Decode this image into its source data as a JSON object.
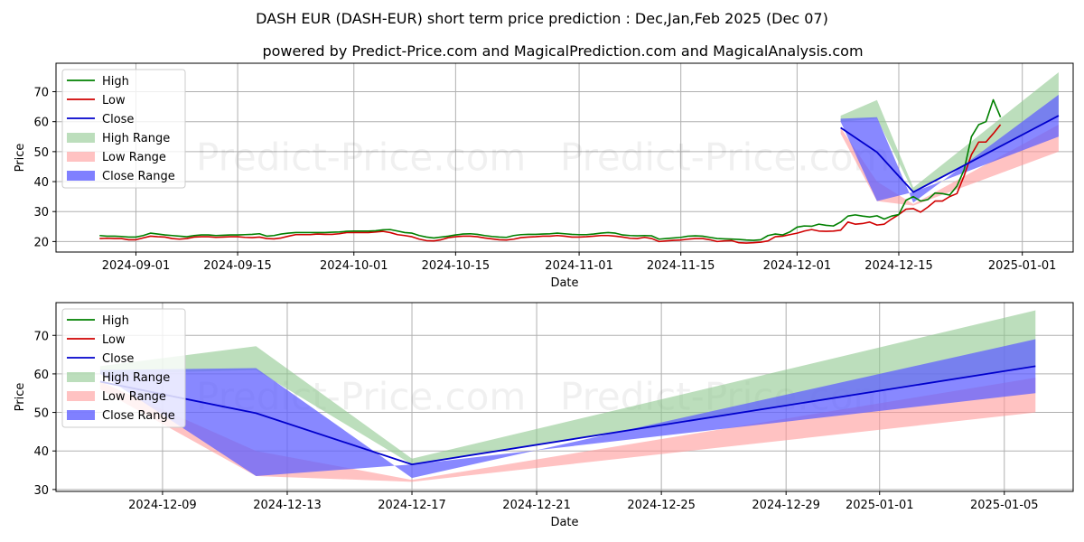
{
  "title": "DASH EUR (DASH-EUR) short term price prediction : Dec,Jan,Feb 2025 (Dec 07)",
  "subtitle": "powered by Predict-Price.com and MagicalPrediction.com and MagicalAnalysis.com",
  "watermark": "Predict-Price.com",
  "colors": {
    "high": "#008000",
    "low": "#d00000",
    "close": "#0000cc",
    "high_range": "#90c890",
    "low_range": "#ff9999",
    "close_range": "#6060ff",
    "grid": "#b0b0b0"
  },
  "legend": {
    "high": "High",
    "low": "Low",
    "close": "Close",
    "high_range": "High Range",
    "low_range": "Low Range",
    "close_range": "Close Range"
  },
  "chart_data": [
    {
      "type": "line",
      "panel": "top",
      "xlabel": "Date",
      "ylabel": "Price",
      "ylim": [
        16.5,
        79.5
      ],
      "xlim": [
        "2024-08-21",
        "2025-01-08"
      ],
      "yticks": [
        20,
        30,
        40,
        50,
        60,
        70
      ],
      "xticks": [
        "2024-09-01",
        "2024-09-15",
        "2024-10-01",
        "2024-10-15",
        "2024-11-01",
        "2024-11-15",
        "2024-12-01",
        "2024-12-15",
        "2025-01-01"
      ],
      "legend_position": "top-left",
      "grid": true,
      "history": {
        "start_date": "2024-08-27",
        "high": [
          22.0,
          21.8,
          21.8,
          21.7,
          21.5,
          21.5,
          22.0,
          22.8,
          22.5,
          22.2,
          22.0,
          21.8,
          21.6,
          22.0,
          22.2,
          22.2,
          22.0,
          22.1,
          22.2,
          22.2,
          22.3,
          22.4,
          22.6,
          21.8,
          22.0,
          22.5,
          22.8,
          23.0,
          23.0,
          23.0,
          23.0,
          23.0,
          23.1,
          23.2,
          23.4,
          23.5,
          23.5,
          23.5,
          23.6,
          23.9,
          24.0,
          23.5,
          23.0,
          22.8,
          22.0,
          21.5,
          21.2,
          21.5,
          21.8,
          22.2,
          22.5,
          22.6,
          22.4,
          22.0,
          21.7,
          21.5,
          21.4,
          22.0,
          22.3,
          22.4,
          22.4,
          22.5,
          22.6,
          22.8,
          22.6,
          22.4,
          22.3,
          22.3,
          22.5,
          22.8,
          23.0,
          22.8,
          22.2,
          22.0,
          21.9,
          22.0,
          21.9,
          20.8,
          21.0,
          21.2,
          21.4,
          21.8,
          21.9,
          21.8,
          21.4,
          21.0,
          20.9,
          20.8,
          20.7,
          20.5,
          20.4,
          20.6,
          22.0,
          22.5,
          22.2,
          23.2,
          24.8,
          25.2,
          25.1,
          25.8,
          25.4,
          25.2,
          26.5,
          28.5,
          28.9,
          28.5,
          28.2,
          28.6,
          27.5,
          28.5,
          29.0,
          33.8,
          35.0,
          33.5,
          34.0,
          36.2,
          36.0,
          35.5,
          38.5,
          44.0,
          55.0,
          59.0,
          60.0,
          67.3,
          61.5
        ],
        "low": [
          21.0,
          21.1,
          21.0,
          21.0,
          20.6,
          20.6,
          21.2,
          21.8,
          21.6,
          21.5,
          21.0,
          20.8,
          21.0,
          21.5,
          21.6,
          21.6,
          21.4,
          21.5,
          21.6,
          21.6,
          21.4,
          21.3,
          21.5,
          21.0,
          20.9,
          21.2,
          21.8,
          22.3,
          22.3,
          22.3,
          22.5,
          22.4,
          22.4,
          22.6,
          23.0,
          23.0,
          23.0,
          23.0,
          23.2,
          23.4,
          23.0,
          22.3,
          22.0,
          21.6,
          20.8,
          20.3,
          20.2,
          20.6,
          21.3,
          21.6,
          21.8,
          21.8,
          21.6,
          21.2,
          20.9,
          20.6,
          20.5,
          20.8,
          21.3,
          21.5,
          21.6,
          21.8,
          21.8,
          22.0,
          21.8,
          21.5,
          21.5,
          21.6,
          21.8,
          22.0,
          22.0,
          21.8,
          21.5,
          21.1,
          21.0,
          21.4,
          21.0,
          20.0,
          20.2,
          20.4,
          20.5,
          20.8,
          21.0,
          21.0,
          20.6,
          20.0,
          20.2,
          20.3,
          19.6,
          19.5,
          19.6,
          19.8,
          20.2,
          21.6,
          21.8,
          22.3,
          22.8,
          23.5,
          24.0,
          23.5,
          23.4,
          23.5,
          23.8,
          26.5,
          25.8,
          26.0,
          26.5,
          25.5,
          25.8,
          27.5,
          29.0,
          30.8,
          31.0,
          29.8,
          31.5,
          33.5,
          33.5,
          35.0,
          36.0,
          42.0,
          49.0,
          53.2,
          53.2,
          56.0,
          59.0
        ]
      },
      "prediction": {
        "dates": [
          "2024-12-07",
          "2024-12-12",
          "2024-12-17",
          "2025-01-06"
        ],
        "close": [
          58.0,
          49.8,
          36.5,
          62.0
        ],
        "close_range_upper": [
          61.0,
          61.5,
          33.0,
          69.0
        ],
        "close_range_lower": [
          60.0,
          33.5,
          36.5,
          55.0
        ],
        "high_range_upper": [
          62.0,
          67.2,
          38.0,
          76.5
        ],
        "high_range_lower": [
          60.0,
          61.0,
          36.5,
          62.0
        ],
        "low_range_upper": [
          58.0,
          40.0,
          32.5,
          59.0
        ],
        "low_range_lower": [
          56.0,
          33.5,
          32.0,
          50.0
        ]
      }
    },
    {
      "type": "line",
      "panel": "bottom",
      "xlabel": "Date",
      "ylabel": "Price",
      "ylim": [
        29.5,
        78.5
      ],
      "xlim": [
        "2024-12-05T14:00",
        "2025-01-07T05:00"
      ],
      "yticks": [
        30,
        40,
        50,
        60,
        70
      ],
      "xticks": [
        "2024-12-09",
        "2024-12-13",
        "2024-12-17",
        "2024-12-21",
        "2024-12-25",
        "2024-12-29",
        "2025-01-01",
        "2025-01-05"
      ],
      "legend_position": "top-left",
      "grid": true,
      "prediction": {
        "dates": [
          "2024-12-07",
          "2024-12-12",
          "2024-12-17",
          "2025-01-06"
        ],
        "close": [
          58.0,
          49.8,
          36.5,
          62.0
        ],
        "close_range_upper": [
          61.0,
          61.5,
          33.0,
          69.0
        ],
        "close_range_lower": [
          60.0,
          33.5,
          36.5,
          55.0
        ],
        "high_range_upper": [
          62.0,
          67.2,
          38.0,
          76.5
        ],
        "high_range_lower": [
          60.0,
          61.0,
          36.5,
          62.0
        ],
        "low_range_upper": [
          58.0,
          40.0,
          32.5,
          59.0
        ],
        "low_range_lower": [
          56.0,
          33.5,
          32.0,
          50.0
        ]
      }
    }
  ]
}
